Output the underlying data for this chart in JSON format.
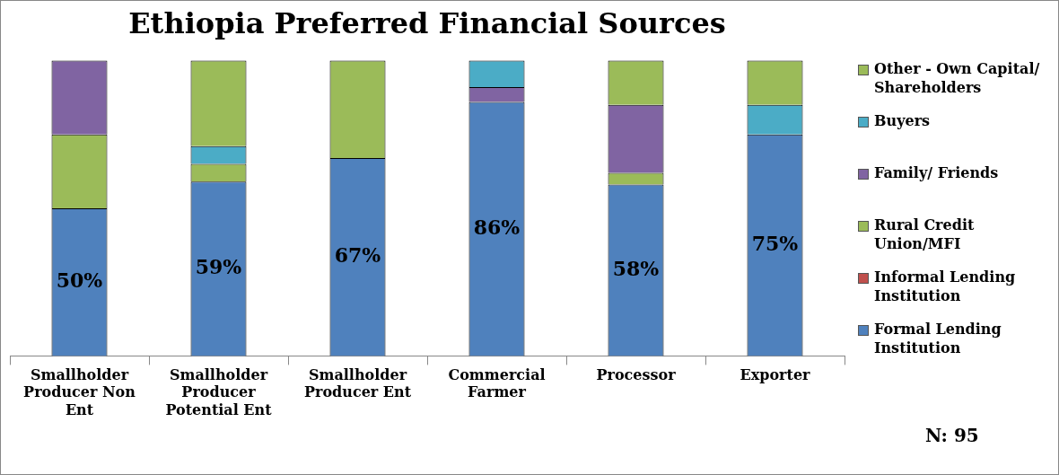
{
  "chart_data": {
    "type": "bar",
    "title": "Ethiopia Preferred Financial Sources",
    "stacked": true,
    "ylim": [
      0,
      100
    ],
    "tick_labels": "x",
    "legend": "right",
    "categories": [
      "Smallholder Producer Non Ent",
      "Smallholder Producer Potential Ent",
      "Smallholder Producer Ent",
      "Commercial Farmer",
      "Processor",
      "Exporter"
    ],
    "series": [
      {
        "name": "Formal Lending Institution",
        "color": "#4f81bd",
        "values": [
          50,
          59,
          67,
          86,
          58,
          75
        ],
        "value_labels": [
          "50%",
          "59%",
          "67%",
          "86%",
          "58%",
          "75%"
        ]
      },
      {
        "name": "Informal Lending Institution",
        "color": "#c0504d",
        "values": [
          0,
          0,
          0,
          0,
          0,
          0
        ]
      },
      {
        "name": "Rural Credit Union/MFI",
        "color": "#9bbb59",
        "values": [
          25,
          6,
          0,
          0,
          4,
          0
        ]
      },
      {
        "name": "Family/ Friends",
        "color": "#8064a2",
        "values": [
          25,
          0,
          0,
          5,
          23,
          0
        ]
      },
      {
        "name": "Buyers",
        "color": "#4bacc6",
        "values": [
          0,
          6,
          0,
          9,
          0,
          10
        ]
      },
      {
        "name": "Other - Own Capital/ Shareholders",
        "color": "#9bbb59",
        "values": [
          0,
          29,
          33,
          0,
          15,
          15
        ]
      }
    ],
    "annotations": [
      "N: 95"
    ]
  }
}
